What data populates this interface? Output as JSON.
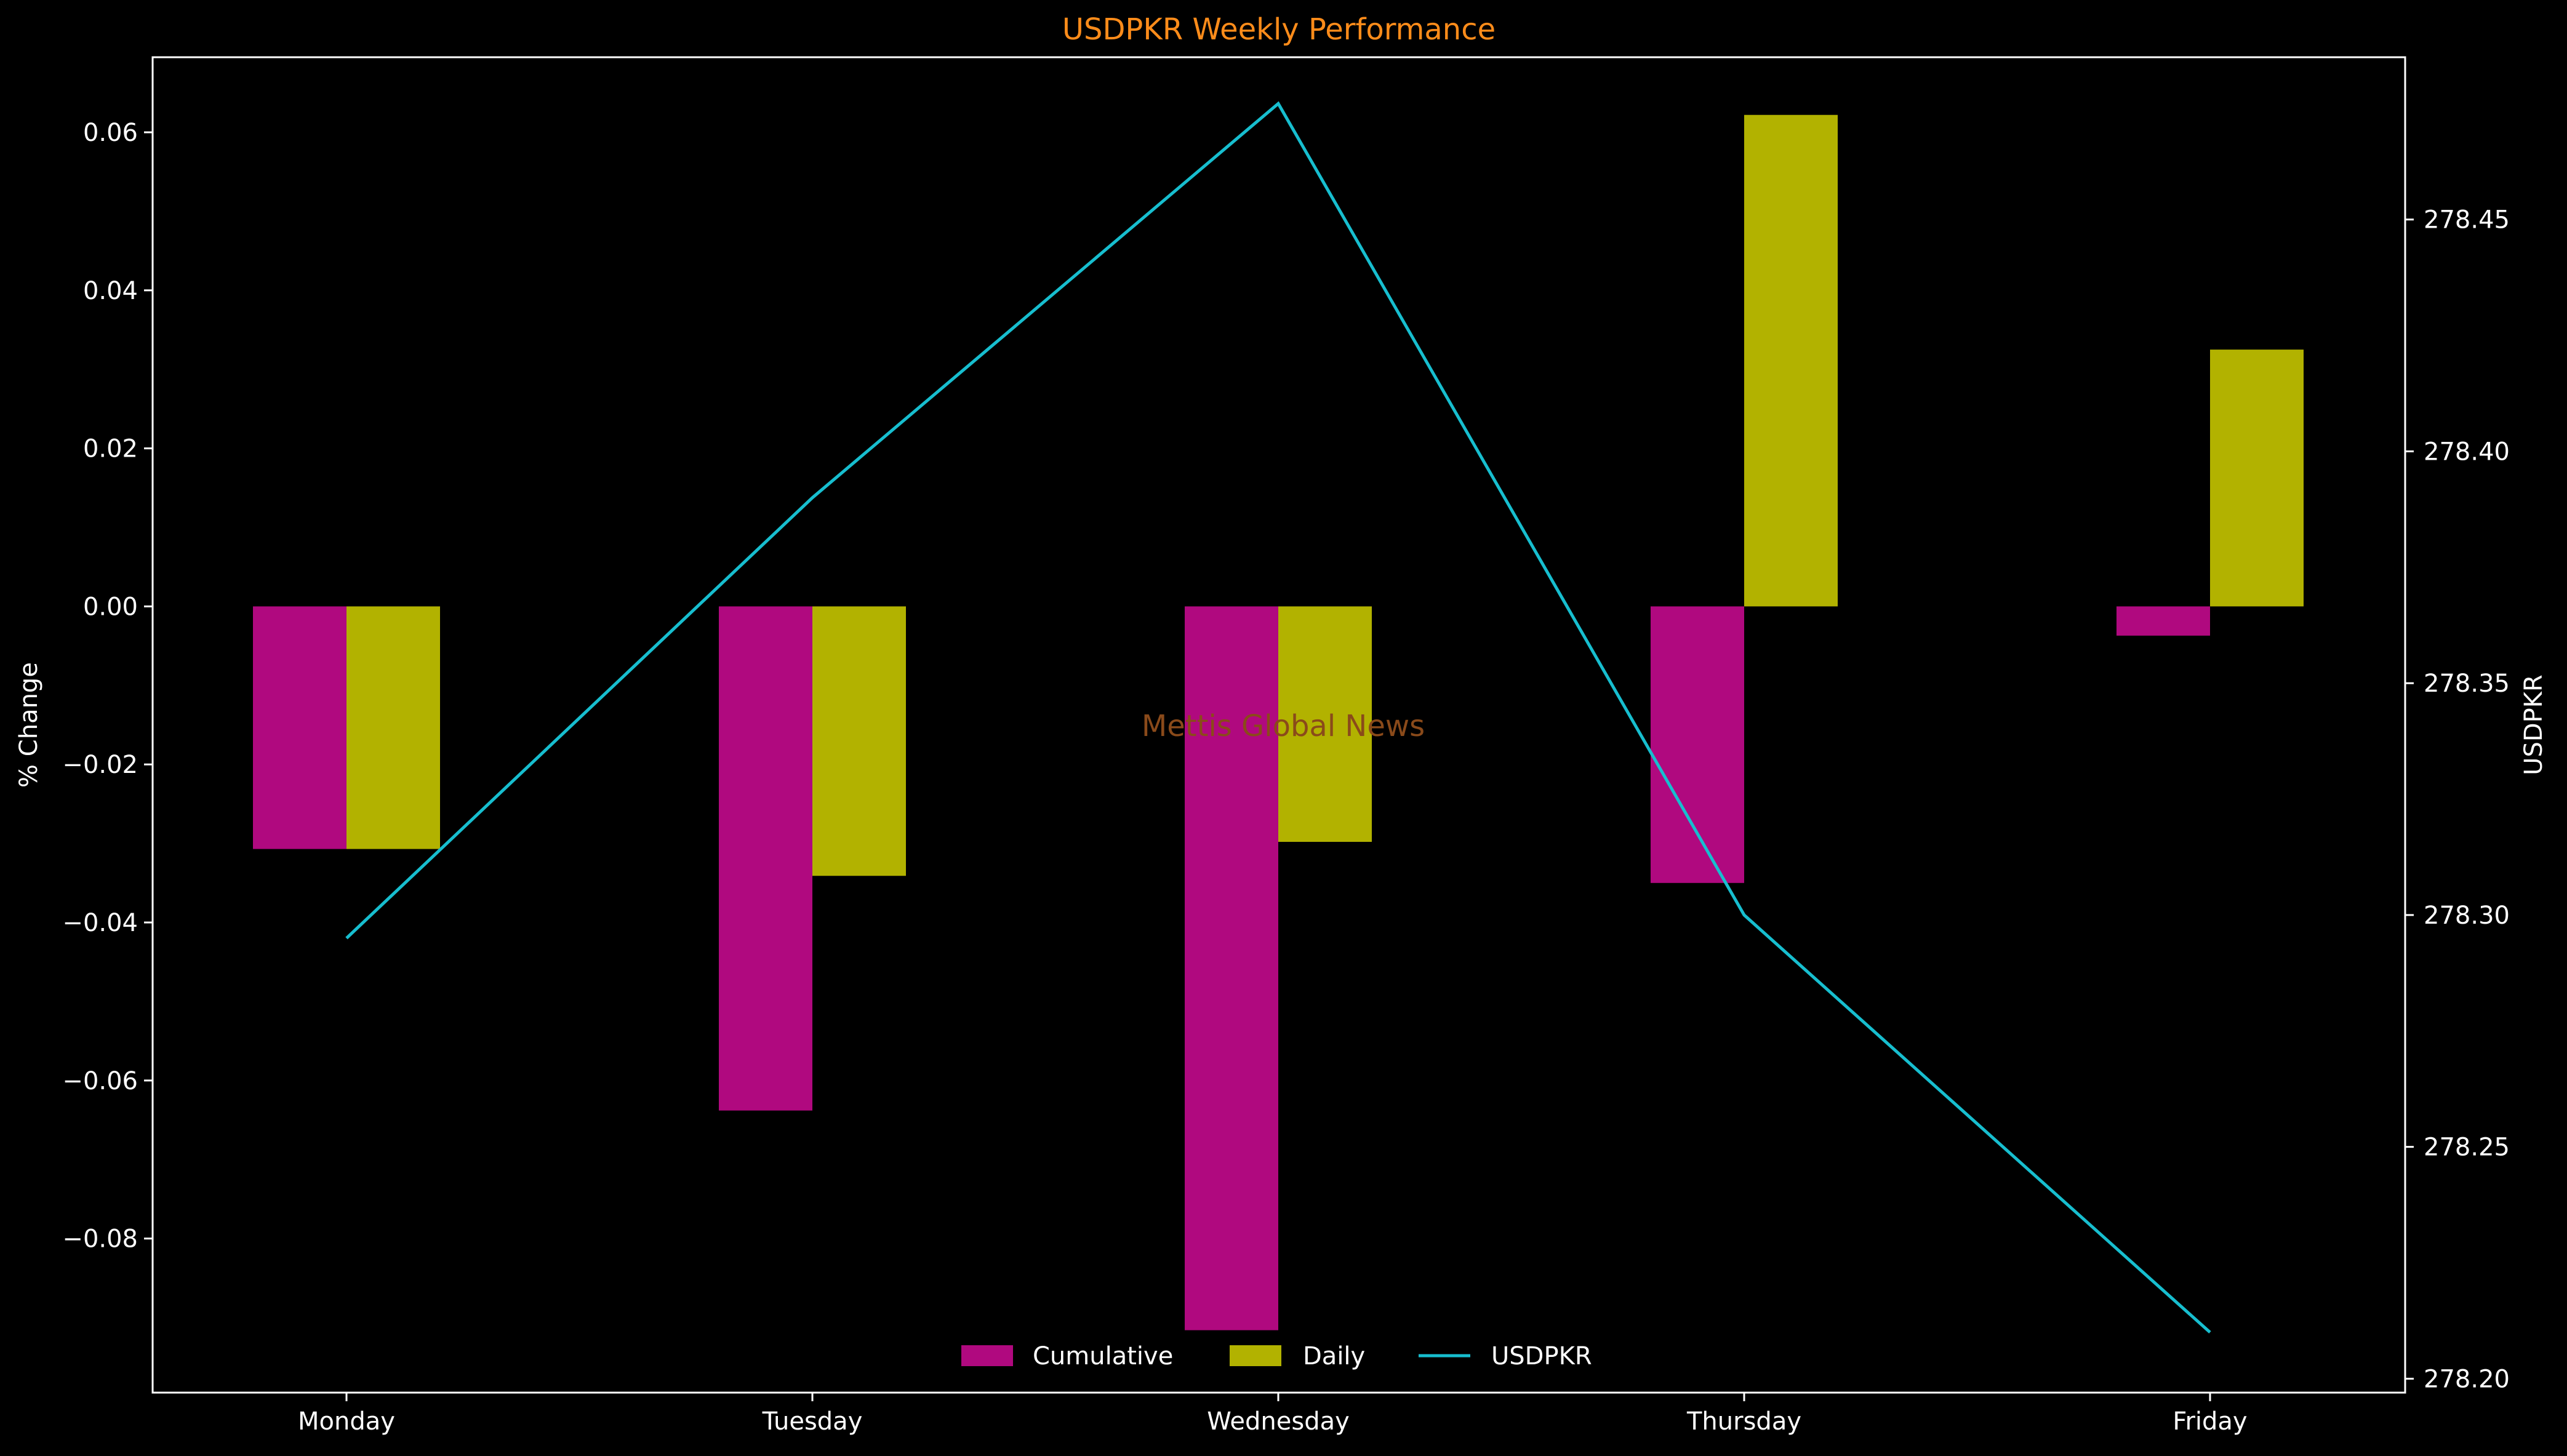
{
  "chart_data": {
    "type": "bar",
    "title": "USDPKR Weekly Performance",
    "watermark": "Mettis Global News",
    "categories": [
      "Monday",
      "Tuesday",
      "Wednesday",
      "Thursday",
      "Friday"
    ],
    "series": [
      {
        "name": "Cumulative",
        "type": "bar",
        "axis": "left",
        "color": "#b0097f",
        "values": [
          -0.0307,
          -0.0638,
          -0.0916,
          -0.035,
          -0.0037
        ]
      },
      {
        "name": "Daily",
        "type": "bar",
        "axis": "left",
        "color": "#b2b200",
        "values": [
          -0.0307,
          -0.0341,
          -0.0298,
          0.0622,
          0.0325
        ]
      },
      {
        "name": "USDPKR",
        "type": "line",
        "axis": "right",
        "color": "#17becf",
        "values": [
          278.295,
          278.39,
          278.475,
          278.3,
          278.21
        ]
      }
    ],
    "ylabel": "% Change",
    "y2label": "USDPKR",
    "ylim": [
      -0.0995,
      0.0695
    ],
    "y2lim": [
      278.197,
      278.485
    ],
    "yticks": [
      "0.06",
      "0.04",
      "0.02",
      "0.00",
      "−0.02",
      "−0.04",
      "−0.06",
      "−0.08"
    ],
    "ytick_values": [
      0.06,
      0.04,
      0.02,
      0.0,
      -0.02,
      -0.04,
      -0.06,
      -0.08
    ],
    "y2ticks": [
      "278.45",
      "278.40",
      "278.35",
      "278.30",
      "278.25",
      "278.20"
    ],
    "y2tick_values": [
      278.45,
      278.4,
      278.35,
      278.3,
      278.25,
      278.2
    ],
    "legend_position": "bottom-center",
    "grid": false
  }
}
